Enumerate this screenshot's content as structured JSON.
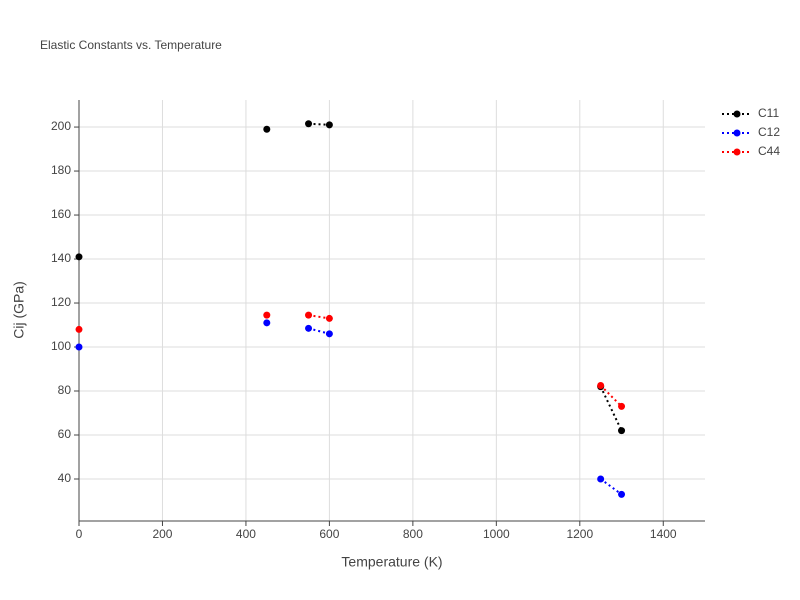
{
  "chart_data": {
    "type": "line",
    "title": "Elastic Constants vs. Temperature",
    "x_label": "Temperature (K)",
    "y_label": "Cij (GPa)",
    "x": [
      0,
      null,
      450,
      null,
      550,
      600,
      null,
      1250,
      1300
    ],
    "series": [
      {
        "name": "C11",
        "color": "#000000",
        "values": [
          141,
          null,
          199,
          null,
          201.5,
          201,
          null,
          82,
          62
        ]
      },
      {
        "name": "C12",
        "color": "#0000ff",
        "values": [
          100,
          null,
          111,
          null,
          108.5,
          106,
          null,
          40,
          33
        ]
      },
      {
        "name": "C44",
        "color": "#ff0000",
        "values": [
          108,
          null,
          114.5,
          null,
          114.5,
          113,
          null,
          82.5,
          73
        ]
      }
    ],
    "xlim": [
      0,
      1500
    ],
    "xticks": [
      0,
      200,
      400,
      600,
      800,
      1000,
      1200,
      1400
    ],
    "ylim": [
      20.9,
      212.3
    ],
    "yticks": [
      40,
      60,
      80,
      100,
      120,
      140,
      160,
      180,
      200
    ],
    "grid": true,
    "legend": "top-right"
  }
}
